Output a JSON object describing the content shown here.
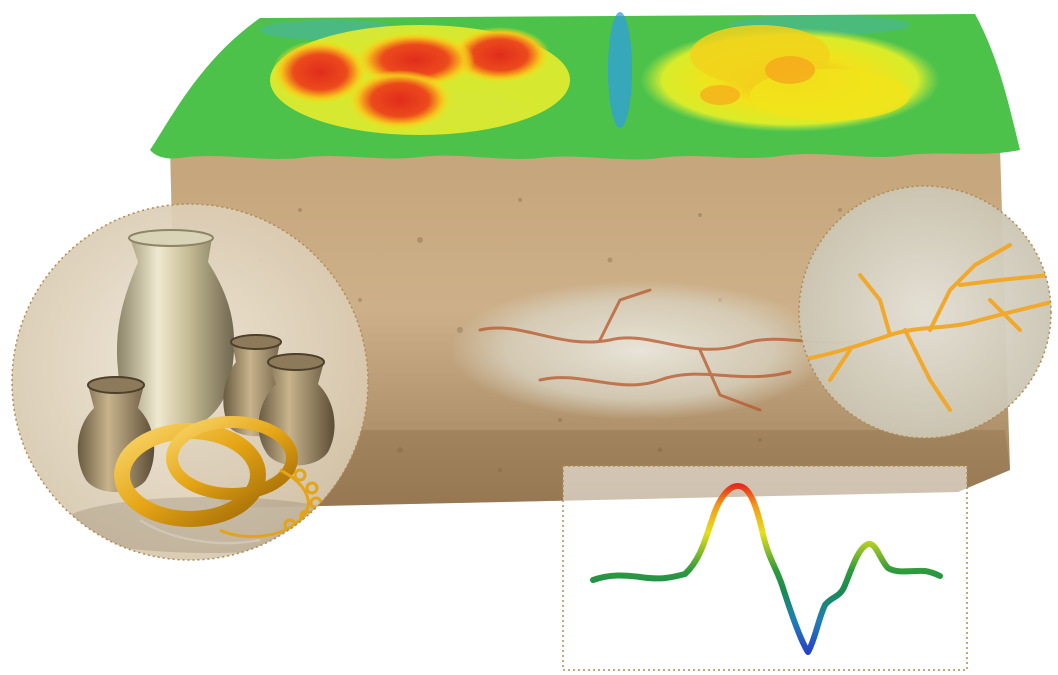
{
  "illustration": {
    "surface_map": {
      "scale_colors": [
        "#2f9fe0",
        "#4cc24a",
        "#f1e91b",
        "#f7a21a",
        "#e23b1e"
      ],
      "anomalies": [
        "red-cross-anomaly",
        "yellow-cross-anomaly"
      ]
    },
    "soil_block": {
      "colors": [
        "#c9ab82",
        "#b8996e",
        "#8f7350"
      ]
    },
    "treasure_lens": {
      "items": [
        "silver-vase-icon",
        "clay-pot-icon",
        "clay-pot-icon",
        "clay-pot-icon",
        "gold-ring-icon",
        "gold-ring-icon",
        "gold-chain-icon"
      ]
    },
    "vein_lens": {
      "vein_color": "#f0a92c"
    },
    "signal_profile": {
      "line_colors": [
        "#1a8a3a",
        "#e8e01c",
        "#e23b1e",
        "#2a40c0"
      ],
      "shape": [
        "flat",
        "peak",
        "trough",
        "small-peak",
        "flat"
      ]
    }
  }
}
